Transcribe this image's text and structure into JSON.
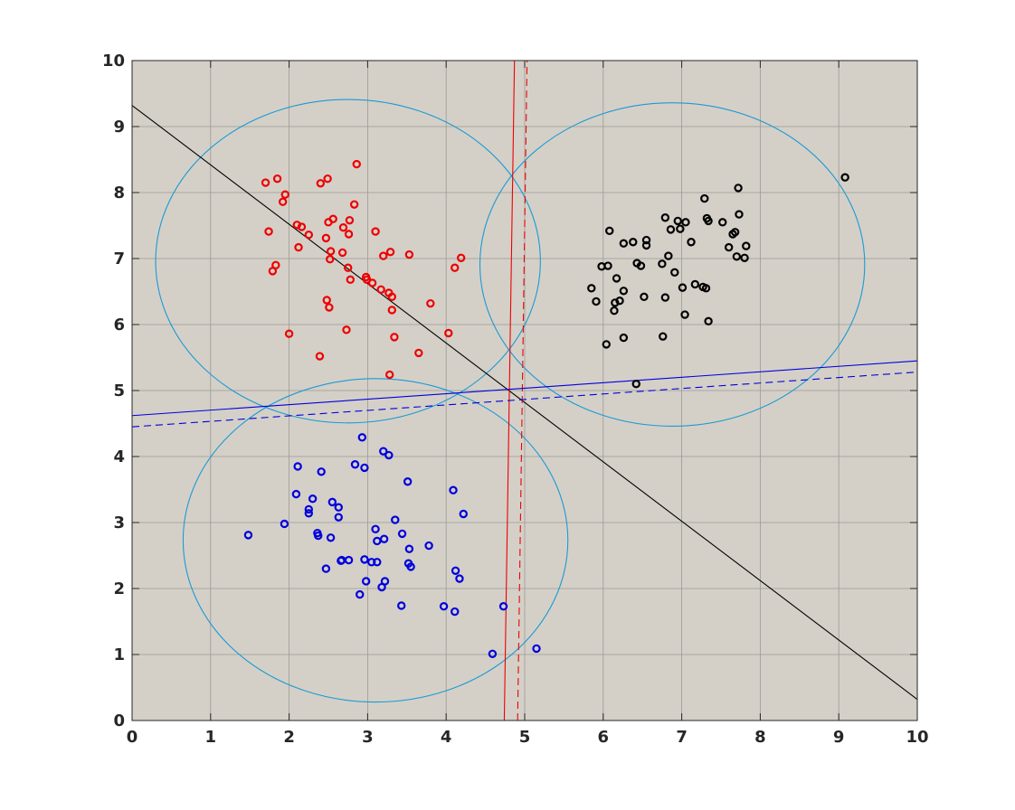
{
  "chart_data": {
    "type": "scatter",
    "title": "",
    "xlabel": "",
    "ylabel": "",
    "xlim": [
      0,
      10
    ],
    "ylim": [
      0,
      10
    ],
    "grid": true,
    "x_ticks": [
      "0",
      "1",
      "2",
      "3",
      "4",
      "5",
      "6",
      "7",
      "8",
      "9",
      "10"
    ],
    "y_ticks": [
      "0",
      "1",
      "2",
      "3",
      "4",
      "5",
      "6",
      "7",
      "8",
      "9",
      "10"
    ],
    "colors": {
      "plot_background": "#d4d0c8",
      "grid": "#9c9a96",
      "axis": "#262626",
      "red": "#ee0000",
      "blue": "#0000dd",
      "black": "#000000",
      "circle": "#1b9ad4"
    },
    "series": [
      {
        "color": "red",
        "marker": "o",
        "points": [
          [
            1.7,
            8.15
          ],
          [
            1.85,
            8.21
          ],
          [
            1.95,
            7.97
          ],
          [
            1.92,
            7.86
          ],
          [
            2.4,
            8.14
          ],
          [
            2.49,
            8.21
          ],
          [
            2.86,
            8.43
          ],
          [
            1.74,
            7.41
          ],
          [
            2.1,
            7.51
          ],
          [
            2.16,
            7.48
          ],
          [
            2.25,
            7.36
          ],
          [
            2.12,
            7.17
          ],
          [
            2.5,
            7.55
          ],
          [
            2.56,
            7.6
          ],
          [
            2.69,
            7.47
          ],
          [
            2.77,
            7.58
          ],
          [
            2.76,
            7.37
          ],
          [
            2.83,
            7.82
          ],
          [
            2.47,
            7.31
          ],
          [
            3.1,
            7.41
          ],
          [
            2.53,
            7.11
          ],
          [
            2.52,
            6.99
          ],
          [
            2.68,
            7.09
          ],
          [
            3.2,
            7.04
          ],
          [
            3.29,
            7.1
          ],
          [
            3.53,
            7.06
          ],
          [
            1.83,
            6.9
          ],
          [
            1.79,
            6.81
          ],
          [
            2.75,
            6.86
          ],
          [
            2.78,
            6.68
          ],
          [
            2.98,
            6.72
          ],
          [
            2.99,
            6.68
          ],
          [
            3.06,
            6.63
          ],
          [
            3.17,
            6.53
          ],
          [
            3.27,
            6.48
          ],
          [
            3.31,
            6.42
          ],
          [
            4.19,
            7.01
          ],
          [
            4.11,
            6.86
          ],
          [
            2.48,
            6.37
          ],
          [
            2.51,
            6.26
          ],
          [
            3.31,
            6.22
          ],
          [
            3.8,
            6.32
          ],
          [
            2.0,
            5.86
          ],
          [
            2.73,
            5.92
          ],
          [
            3.34,
            5.81
          ],
          [
            4.03,
            5.87
          ],
          [
            2.39,
            5.52
          ],
          [
            3.65,
            5.57
          ],
          [
            3.28,
            5.24
          ]
        ]
      },
      {
        "color": "blue",
        "marker": "o",
        "points": [
          [
            2.93,
            4.29
          ],
          [
            3.2,
            4.08
          ],
          [
            3.27,
            4.02
          ],
          [
            2.11,
            3.85
          ],
          [
            2.41,
            3.77
          ],
          [
            2.84,
            3.88
          ],
          [
            2.96,
            3.83
          ],
          [
            3.51,
            3.62
          ],
          [
            2.09,
            3.43
          ],
          [
            2.3,
            3.36
          ],
          [
            2.55,
            3.31
          ],
          [
            2.63,
            3.23
          ],
          [
            2.25,
            3.2
          ],
          [
            2.25,
            3.14
          ],
          [
            2.63,
            3.08
          ],
          [
            4.09,
            3.49
          ],
          [
            4.22,
            3.13
          ],
          [
            1.94,
            2.98
          ],
          [
            3.35,
            3.04
          ],
          [
            1.48,
            2.81
          ],
          [
            2.36,
            2.84
          ],
          [
            2.37,
            2.8
          ],
          [
            2.53,
            2.77
          ],
          [
            3.1,
            2.9
          ],
          [
            3.44,
            2.83
          ],
          [
            3.12,
            2.72
          ],
          [
            3.21,
            2.75
          ],
          [
            3.78,
            2.65
          ],
          [
            3.53,
            2.6
          ],
          [
            2.47,
            2.3
          ],
          [
            2.66,
            2.42
          ],
          [
            2.67,
            2.43
          ],
          [
            2.76,
            2.43
          ],
          [
            2.96,
            2.44
          ],
          [
            3.05,
            2.4
          ],
          [
            3.12,
            2.4
          ],
          [
            3.52,
            2.38
          ],
          [
            3.55,
            2.33
          ],
          [
            4.12,
            2.27
          ],
          [
            4.17,
            2.15
          ],
          [
            2.98,
            2.11
          ],
          [
            3.22,
            2.11
          ],
          [
            3.18,
            2.02
          ],
          [
            2.9,
            1.91
          ],
          [
            3.43,
            1.74
          ],
          [
            3.97,
            1.73
          ],
          [
            4.11,
            1.65
          ],
          [
            4.73,
            1.73
          ],
          [
            4.59,
            1.01
          ],
          [
            5.15,
            1.09
          ]
        ]
      },
      {
        "color": "black",
        "marker": "o",
        "points": [
          [
            9.08,
            8.23
          ],
          [
            7.72,
            8.07
          ],
          [
            7.29,
            7.91
          ],
          [
            7.73,
            7.67
          ],
          [
            6.79,
            7.62
          ],
          [
            6.95,
            7.57
          ],
          [
            7.05,
            7.55
          ],
          [
            7.32,
            7.61
          ],
          [
            7.34,
            7.57
          ],
          [
            7.52,
            7.55
          ],
          [
            6.08,
            7.42
          ],
          [
            6.86,
            7.44
          ],
          [
            6.98,
            7.45
          ],
          [
            7.65,
            7.37
          ],
          [
            7.68,
            7.4
          ],
          [
            6.26,
            7.23
          ],
          [
            6.38,
            7.25
          ],
          [
            6.55,
            7.28
          ],
          [
            6.55,
            7.2
          ],
          [
            7.12,
            7.25
          ],
          [
            7.6,
            7.17
          ],
          [
            7.82,
            7.19
          ],
          [
            6.83,
            7.04
          ],
          [
            7.7,
            7.03
          ],
          [
            7.8,
            7.01
          ],
          [
            5.98,
            6.88
          ],
          [
            6.06,
            6.89
          ],
          [
            6.43,
            6.93
          ],
          [
            6.48,
            6.89
          ],
          [
            6.75,
            6.92
          ],
          [
            6.91,
            6.79
          ],
          [
            5.85,
            6.55
          ],
          [
            6.17,
            6.7
          ],
          [
            6.26,
            6.51
          ],
          [
            6.52,
            6.42
          ],
          [
            6.79,
            6.41
          ],
          [
            7.01,
            6.56
          ],
          [
            7.17,
            6.61
          ],
          [
            7.27,
            6.57
          ],
          [
            7.31,
            6.55
          ],
          [
            5.91,
            6.35
          ],
          [
            6.15,
            6.33
          ],
          [
            6.21,
            6.36
          ],
          [
            6.14,
            6.21
          ],
          [
            7.04,
            6.15
          ],
          [
            7.34,
            6.05
          ],
          [
            6.04,
            5.7
          ],
          [
            6.26,
            5.8
          ],
          [
            6.76,
            5.82
          ],
          [
            6.42,
            5.1
          ]
        ]
      }
    ],
    "circles": [
      {
        "cx": 2.75,
        "cy": 6.96,
        "rx": 2.45,
        "ry": 2.45
      },
      {
        "cx": 6.88,
        "cy": 6.91,
        "rx": 2.45,
        "ry": 2.45
      },
      {
        "cx": 3.1,
        "cy": 2.73,
        "rx": 2.45,
        "ry": 2.45
      }
    ],
    "lines": [
      {
        "name": "black-boundary",
        "color": "black",
        "dashed": false,
        "from": [
          0,
          9.32
        ],
        "to": [
          10,
          0.32
        ]
      },
      {
        "name": "red-boundary",
        "color": "red",
        "dashed": false,
        "from": [
          4.74,
          0
        ],
        "to": [
          4.87,
          10
        ]
      },
      {
        "name": "red-boundary-dashed",
        "color": "red",
        "dashed": true,
        "from": [
          4.91,
          0
        ],
        "to": [
          5.03,
          10
        ]
      },
      {
        "name": "blue-boundary",
        "color": "blue",
        "dashed": false,
        "from": [
          0,
          4.62
        ],
        "to": [
          10,
          5.45
        ]
      },
      {
        "name": "blue-boundary-dashed",
        "color": "blue",
        "dashed": true,
        "from": [
          0,
          4.45
        ],
        "to": [
          10,
          5.28
        ]
      }
    ]
  }
}
